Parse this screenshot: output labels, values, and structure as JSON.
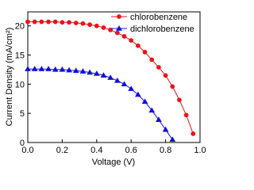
{
  "chart_data": {
    "type": "line",
    "xlabel": "Voltage (V)",
    "ylabel": "Current Density (mA/cm²)",
    "xlim": [
      0,
      1.0
    ],
    "ylim": [
      0,
      22.4
    ],
    "xticks": [
      {
        "value": 0,
        "label": "0.0"
      },
      {
        "value": 0.2,
        "label": "0.2"
      },
      {
        "value": 0.4,
        "label": "0.4"
      },
      {
        "value": 0.6,
        "label": "0.6"
      },
      {
        "value": 0.8,
        "label": "0.8"
      },
      {
        "value": 1.0,
        "label": "1.0"
      }
    ],
    "yticks": [
      0,
      5,
      10,
      15,
      20
    ],
    "legend": "upper right",
    "series": [
      {
        "name": "chlorobenzene",
        "color": "#e8141b",
        "marker": "circle",
        "x": [
          0,
          0.04,
          0.08,
          0.12,
          0.16,
          0.2,
          0.24,
          0.28,
          0.32,
          0.36,
          0.4,
          0.44,
          0.48,
          0.52,
          0.56,
          0.6,
          0.64,
          0.68,
          0.72,
          0.76,
          0.8,
          0.84,
          0.88,
          0.92,
          0.96
        ],
        "values": [
          20.7,
          20.7,
          20.7,
          20.7,
          20.7,
          20.6,
          20.6,
          20.5,
          20.4,
          20.2,
          20.0,
          19.7,
          19.3,
          18.8,
          18.2,
          17.5,
          16.6,
          15.5,
          14.2,
          12.9,
          11.5,
          9.6,
          7.3,
          4.7,
          1.5
        ]
      },
      {
        "name": "dichlorobenzene",
        "color": "#1010d8",
        "marker": "triangle",
        "x": [
          0,
          0.04,
          0.08,
          0.12,
          0.16,
          0.2,
          0.24,
          0.28,
          0.32,
          0.36,
          0.4,
          0.44,
          0.48,
          0.52,
          0.56,
          0.6,
          0.64,
          0.68,
          0.72,
          0.76,
          0.8,
          0.84
        ],
        "values": [
          12.6,
          12.6,
          12.6,
          12.6,
          12.5,
          12.5,
          12.4,
          12.3,
          12.2,
          12.0,
          11.8,
          11.5,
          11.1,
          10.6,
          10.0,
          9.2,
          8.2,
          7.0,
          5.5,
          3.9,
          2.2,
          0.5
        ]
      }
    ]
  }
}
